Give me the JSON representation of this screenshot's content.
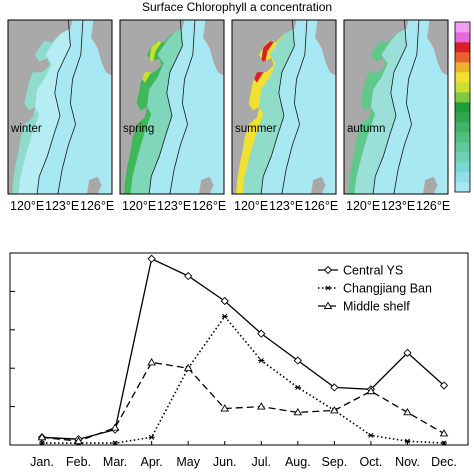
{
  "figure_title": "Surface Chlorophyll a concentration",
  "colors": {
    "land": "#a9a9a9",
    "sea_low": "#a8e8f2",
    "sea_mid": "#6fd6cf",
    "sea_high": "#3fbf78",
    "bloom": "#f0e030",
    "peak": "#d8202a",
    "contour": "#1a1a1a"
  },
  "map_longitude_ticks": [
    "120°E",
    "123°E",
    "126°E"
  ],
  "chart_data": [
    {
      "type": "heatmap",
      "title": "Surface Chlorophyll a concentration",
      "panels": [
        "winter",
        "spring",
        "summer",
        "autumn"
      ],
      "longitude_ticks": [
        "120°E",
        "123°E",
        "126°E"
      ],
      "colorbar": {
        "colors": [
          "#a8e8f2",
          "#8fe0e8",
          "#79d8d4",
          "#6fd0b8",
          "#5fc89a",
          "#4fbf80",
          "#3fb468",
          "#2fa850",
          "#1f9c3c",
          "#7fcc40",
          "#c8e030",
          "#f0e030",
          "#f0b030",
          "#e86030",
          "#d8202a",
          "#e86ad8",
          "#f0a0f0"
        ]
      }
    },
    {
      "type": "line",
      "categories": [
        "Jan.",
        "Feb.",
        "Mar.",
        "Apr.",
        "May",
        "Jun.",
        "Jul.",
        "Aug.",
        "Sep.",
        "Oct.",
        "Nov.",
        "Dec."
      ],
      "ylim": [
        0,
        5
      ],
      "series": [
        {
          "name": "Central YS",
          "style": "solid-diamond",
          "values": [
            0.2,
            0.15,
            0.4,
            4.85,
            4.4,
            3.75,
            2.9,
            2.2,
            1.5,
            1.45,
            2.4,
            1.55
          ]
        },
        {
          "name": "Changjiang Ban",
          "style": "dotted-star",
          "values": [
            0.05,
            0.05,
            0.05,
            0.2,
            2.0,
            3.35,
            2.2,
            1.5,
            0.9,
            0.25,
            0.1,
            0.05
          ]
        },
        {
          "name": "Middle shelf",
          "style": "dashed-triangle",
          "values": [
            0.2,
            0.1,
            0.45,
            2.15,
            2.0,
            0.95,
            1.0,
            0.85,
            0.9,
            1.4,
            0.85,
            0.3
          ]
        }
      ]
    }
  ]
}
